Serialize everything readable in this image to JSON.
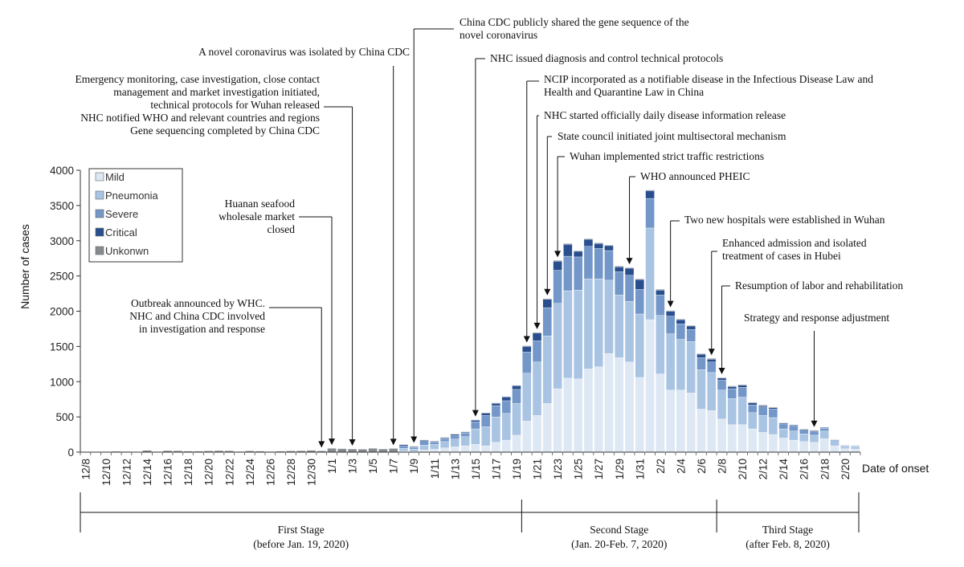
{
  "chart_data": {
    "type": "bar",
    "stacked": true,
    "xlabel": "Date of onset",
    "ylabel": "Number of cases",
    "ylim": [
      0,
      4000
    ],
    "yticks": [
      0,
      500,
      1000,
      1500,
      2000,
      2500,
      3000,
      3500,
      4000
    ],
    "categories": [
      "12/8",
      "12/9",
      "12/10",
      "12/11",
      "12/12",
      "12/13",
      "12/14",
      "12/15",
      "12/16",
      "12/17",
      "12/18",
      "12/19",
      "12/20",
      "12/21",
      "12/22",
      "12/23",
      "12/24",
      "12/25",
      "12/26",
      "12/27",
      "12/28",
      "12/29",
      "12/30",
      "12/31",
      "1/1",
      "1/2",
      "1/3",
      "1/4",
      "1/5",
      "1/6",
      "1/7",
      "1/8",
      "1/9",
      "1/10",
      "1/11",
      "1/12",
      "1/13",
      "1/14",
      "1/15",
      "1/16",
      "1/17",
      "1/18",
      "1/19",
      "1/20",
      "1/21",
      "1/22",
      "1/23",
      "1/24",
      "1/25",
      "1/26",
      "1/27",
      "1/28",
      "1/29",
      "1/30",
      "1/31",
      "2/1",
      "2/2",
      "2/3",
      "2/4",
      "2/5",
      "2/6",
      "2/7",
      "2/8",
      "2/9",
      "2/10",
      "2/11",
      "2/12",
      "2/13",
      "2/14",
      "2/15",
      "2/16",
      "2/17",
      "2/18",
      "2/19",
      "2/20",
      "2/21"
    ],
    "tick_labels": [
      "12/8",
      "12/10",
      "12/12",
      "12/14",
      "12/16",
      "12/18",
      "12/20",
      "12/22",
      "12/24",
      "12/26",
      "12/28",
      "12/30",
      "1/1",
      "1/3",
      "1/5",
      "1/7",
      "1/9",
      "1/11",
      "1/13",
      "1/15",
      "1/17",
      "1/19",
      "1/21",
      "1/23",
      "1/25",
      "1/27",
      "1/29",
      "1/31",
      "2/2",
      "2/4",
      "2/6",
      "2/8",
      "2/10",
      "2/12",
      "2/14",
      "2/16",
      "2/18",
      "2/20"
    ],
    "totals": [
      5,
      3,
      8,
      12,
      10,
      5,
      25,
      8,
      22,
      20,
      15,
      14,
      18,
      22,
      20,
      10,
      18,
      15,
      10,
      14,
      18,
      20,
      25,
      18,
      55,
      50,
      45,
      42,
      55,
      45,
      52,
      110,
      85,
      175,
      160,
      210,
      260,
      290,
      460,
      560,
      700,
      790,
      950,
      1510,
      1700,
      2180,
      2720,
      2960,
      2860,
      3030,
      2970,
      2940,
      2640,
      2620,
      2460,
      3720,
      2310,
      2010,
      1890,
      1800,
      1400,
      1330,
      1060,
      940,
      960,
      710,
      670,
      640,
      420,
      390,
      330,
      310,
      350,
      180,
      100,
      95
    ],
    "series": [
      {
        "name": "Mild",
        "color": "#dde8f4",
        "values": [
          0,
          0,
          0,
          0,
          0,
          0,
          0,
          0,
          0,
          0,
          0,
          0,
          0,
          0,
          0,
          0,
          0,
          0,
          0,
          0,
          0,
          0,
          0,
          0,
          0,
          0,
          0,
          0,
          0,
          0,
          0,
          15,
          8,
          30,
          40,
          60,
          75,
          90,
          110,
          90,
          140,
          170,
          240,
          440,
          520,
          690,
          900,
          1050,
          1040,
          1180,
          1210,
          1400,
          1340,
          1280,
          1060,
          1880,
          1110,
          880,
          880,
          840,
          610,
          590,
          470,
          390,
          390,
          330,
          280,
          250,
          200,
          170,
          150,
          140,
          190,
          90,
          50,
          45
        ]
      },
      {
        "name": "Pneumonia",
        "color": "#a9c4e3",
        "values": [
          0,
          0,
          0,
          0,
          0,
          0,
          0,
          0,
          0,
          0,
          0,
          0,
          0,
          0,
          0,
          0,
          0,
          0,
          0,
          0,
          0,
          0,
          0,
          0,
          0,
          0,
          0,
          0,
          0,
          0,
          0,
          40,
          35,
          70,
          70,
          90,
          110,
          130,
          220,
          270,
          360,
          380,
          450,
          680,
          760,
          960,
          1210,
          1240,
          1260,
          1280,
          1250,
          1040,
          890,
          860,
          900,
          1300,
          830,
          800,
          720,
          730,
          560,
          540,
          410,
          370,
          390,
          230,
          240,
          240,
          130,
          130,
          110,
          100,
          110,
          60,
          30,
          30
        ]
      },
      {
        "name": "Severe",
        "color": "#7397c9",
        "values": [
          0,
          0,
          0,
          0,
          0,
          0,
          0,
          0,
          0,
          0,
          0,
          0,
          0,
          0,
          0,
          0,
          0,
          0,
          0,
          0,
          0,
          0,
          0,
          0,
          0,
          0,
          0,
          0,
          0,
          0,
          0,
          30,
          25,
          50,
          35,
          40,
          50,
          50,
          100,
          160,
          160,
          180,
          200,
          300,
          300,
          400,
          470,
          490,
          470,
          460,
          430,
          420,
          330,
          370,
          350,
          420,
          290,
          250,
          220,
          170,
          170,
          150,
          140,
          140,
          140,
          110,
          120,
          120,
          70,
          70,
          50,
          50,
          40,
          20,
          12,
          12
        ]
      },
      {
        "name": "Critical",
        "color": "#2a4f8e",
        "values": [
          0,
          0,
          0,
          0,
          0,
          0,
          0,
          0,
          0,
          0,
          0,
          0,
          0,
          0,
          0,
          0,
          0,
          0,
          0,
          0,
          0,
          0,
          0,
          0,
          0,
          0,
          0,
          0,
          0,
          0,
          0,
          20,
          12,
          20,
          12,
          15,
          20,
          15,
          25,
          35,
          35,
          55,
          55,
          80,
          110,
          120,
          130,
          170,
          80,
          100,
          70,
          70,
          70,
          100,
          140,
          110,
          70,
          70,
          60,
          50,
          50,
          40,
          30,
          30,
          30,
          30,
          20,
          20,
          15,
          15,
          15,
          15,
          10,
          8,
          5,
          5
        ]
      },
      {
        "name": "Unkonwn",
        "color": "#868a8f",
        "values": [
          5,
          3,
          8,
          12,
          10,
          5,
          25,
          8,
          22,
          20,
          15,
          14,
          18,
          22,
          20,
          10,
          18,
          15,
          10,
          14,
          18,
          20,
          25,
          18,
          55,
          50,
          45,
          42,
          55,
          45,
          52,
          5,
          5,
          5,
          3,
          5,
          5,
          5,
          5,
          5,
          5,
          5,
          5,
          10,
          10,
          10,
          10,
          10,
          10,
          10,
          10,
          10,
          10,
          10,
          10,
          10,
          10,
          10,
          10,
          10,
          10,
          10,
          10,
          10,
          10,
          10,
          10,
          10,
          5,
          5,
          5,
          5,
          0,
          2,
          3,
          3
        ]
      }
    ],
    "annotations": [
      {
        "date": "12/31",
        "lines": [
          "Outbreak announced by WHC.",
          "NHC and China CDC involved",
          "in investigation and response"
        ]
      },
      {
        "date": "1/1",
        "lines": [
          "Huanan seafood",
          "wholesale market",
          "closed"
        ]
      },
      {
        "date": "1/3",
        "lines": [
          "Emergency monitoring, case investigation, close contact",
          "management and market investigation initiated,",
          "technical protocols for Wuhan released",
          "NHC notified WHO and relevant countries and regions",
          "Gene sequencing completed by China CDC"
        ]
      },
      {
        "date": "1/7",
        "lines": [
          "A novel coronavirus was isolated by China CDC"
        ]
      },
      {
        "date": "1/9",
        "lines": [
          "China CDC publicly shared the gene sequence of the",
          "novel coronavirus"
        ]
      },
      {
        "date": "1/15",
        "lines": [
          "NHC issued diagnosis and control technical  protocols"
        ]
      },
      {
        "date": "1/20",
        "lines": [
          "NCIP incorporated as a notifiable disease in the Infectious Disease Law and",
          "Health and Quarantine Law in China"
        ]
      },
      {
        "date": "1/21",
        "lines": [
          "NHC started officially daily disease information release"
        ]
      },
      {
        "date": "1/22",
        "lines": [
          "State council initiated joint multisectoral mechanism"
        ]
      },
      {
        "date": "1/23",
        "lines": [
          "Wuhan implemented strict traffic restrictions"
        ]
      },
      {
        "date": "1/30",
        "lines": [
          "WHO announced PHEIC"
        ]
      },
      {
        "date": "2/3",
        "lines": [
          "Two new hospitals were established in Wuhan"
        ]
      },
      {
        "date": "2/7",
        "lines": [
          "Enhanced admission and isolated",
          "treatment  of cases in Hubei"
        ]
      },
      {
        "date": "2/8",
        "lines": [
          "Resumption of labor and rehabilitation"
        ]
      },
      {
        "date": "2/17",
        "lines": [
          "Strategy and response adjustment"
        ]
      }
    ],
    "stages": [
      {
        "name": "First Stage",
        "period": "(before Jan. 19, 2020)"
      },
      {
        "name": "Second Stage",
        "period": "(Jan. 20-Feb. 7, 2020)"
      },
      {
        "name": "Third Stage",
        "period": "(after Feb. 8, 2020)"
      }
    ],
    "legend": {
      "position": "top-left"
    }
  }
}
